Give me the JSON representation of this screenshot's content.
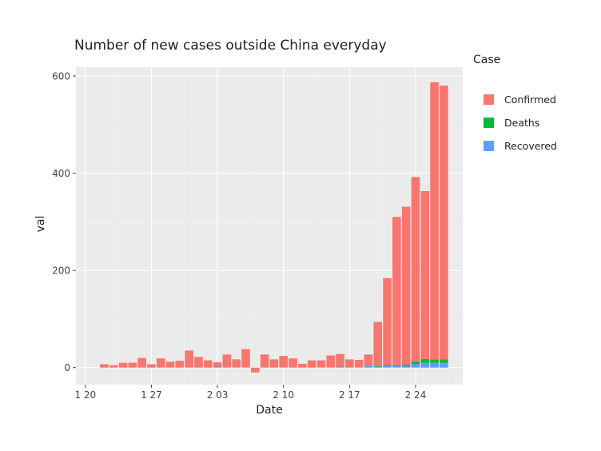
{
  "chart_data": {
    "type": "bar",
    "stacked": true,
    "title": "Number of new cases outside China everyday",
    "xlabel": "Date",
    "ylabel": "val",
    "x_tick_labels": [
      {
        "label": "1 20",
        "date": "2020-01-20"
      },
      {
        "label": "1 27",
        "date": "2020-01-27"
      },
      {
        "label": "2 03",
        "date": "2020-02-03"
      },
      {
        "label": "2 10",
        "date": "2020-02-10"
      },
      {
        "label": "2 17",
        "date": "2020-02-17"
      },
      {
        "label": "2 24",
        "date": "2020-02-24"
      }
    ],
    "xlim": [
      "2020-01-19",
      "2020-02-29"
    ],
    "ylim": [
      -35,
      618
    ],
    "y_ticks": [
      0,
      200,
      400,
      600
    ],
    "grid": true,
    "legend": {
      "title": "Case",
      "placement": "right"
    },
    "dates": [
      "2020-01-22",
      "2020-01-23",
      "2020-01-24",
      "2020-01-25",
      "2020-01-26",
      "2020-01-27",
      "2020-01-28",
      "2020-01-29",
      "2020-01-30",
      "2020-01-31",
      "2020-02-01",
      "2020-02-02",
      "2020-02-03",
      "2020-02-04",
      "2020-02-05",
      "2020-02-06",
      "2020-02-07",
      "2020-02-08",
      "2020-02-09",
      "2020-02-10",
      "2020-02-11",
      "2020-02-12",
      "2020-02-13",
      "2020-02-14",
      "2020-02-15",
      "2020-02-16",
      "2020-02-17",
      "2020-02-18",
      "2020-02-19",
      "2020-02-20",
      "2020-02-21",
      "2020-02-22",
      "2020-02-23",
      "2020-02-24",
      "2020-02-25",
      "2020-02-26",
      "2020-02-27"
    ],
    "series": [
      {
        "name": "Confirmed",
        "color": "#F8766D",
        "values": [
          7,
          5,
          10,
          10,
          20,
          7,
          19,
          12,
          14,
          35,
          22,
          15,
          9,
          27,
          16,
          38,
          -10,
          27,
          17,
          24,
          19,
          8,
          15,
          14,
          24,
          26,
          17,
          16,
          22,
          91,
          178,
          305,
          325,
          380,
          345,
          570,
          563
        ]
      },
      {
        "name": "Deaths",
        "color": "#00BA38",
        "values": [
          0,
          0,
          0,
          0,
          0,
          0,
          0,
          0,
          0,
          0,
          0,
          0,
          0,
          0,
          0,
          0,
          0,
          0,
          0,
          0,
          0,
          0,
          0,
          0,
          0,
          0,
          0,
          0,
          1,
          1,
          2,
          2,
          3,
          5,
          8,
          7,
          7
        ]
      },
      {
        "name": "Recovered",
        "color": "#619CFF",
        "values": [
          0,
          0,
          0,
          0,
          0,
          0,
          0,
          0,
          0,
          0,
          0,
          0,
          2,
          0,
          1,
          0,
          0,
          0,
          0,
          0,
          0,
          0,
          0,
          1,
          1,
          2,
          0,
          0,
          4,
          2,
          4,
          3,
          3,
          7,
          10,
          10,
          10
        ]
      }
    ]
  }
}
